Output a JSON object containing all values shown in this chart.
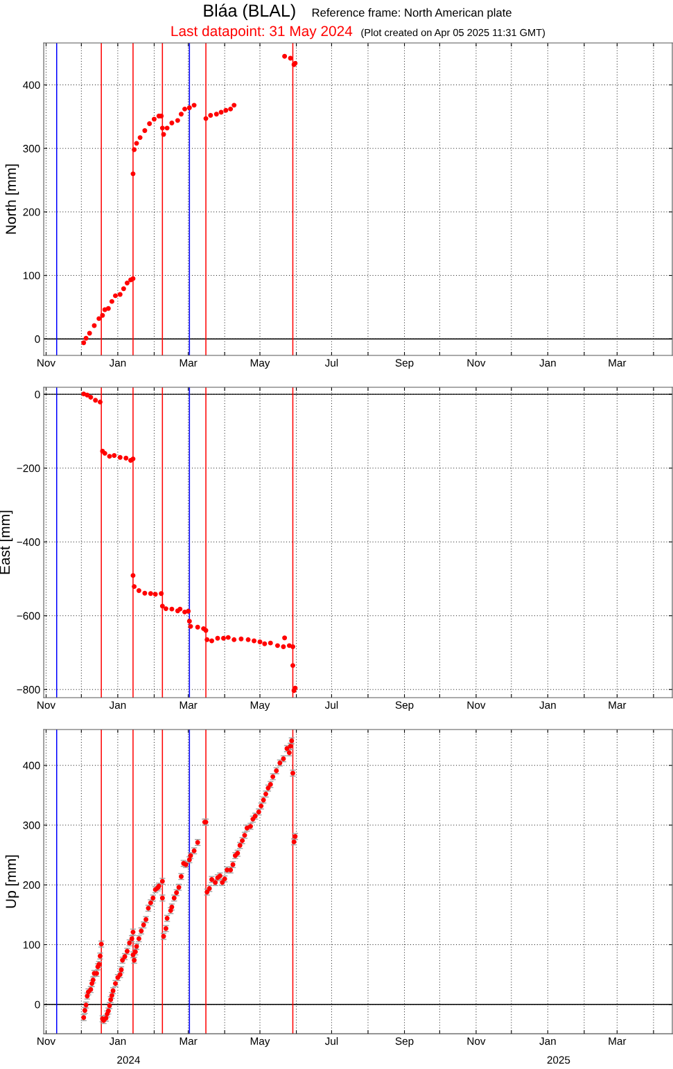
{
  "chart_data": [
    {
      "type": "scatter",
      "title": "Bláa (BLAL)",
      "subtitle": "Reference frame: North American plate",
      "ylabel": "North [mm]",
      "annotations": [
        "Last datapoint: 31 May 2024",
        "(Plot created on Apr 05 2025 11:31 GMT)"
      ],
      "series": [
        {
          "color": "#ff0000",
          "x": [
            "2023-12-03",
            "2023-12-05",
            "2023-12-08",
            "2023-12-12",
            "2023-12-16",
            "2023-12-19",
            "2023-12-21",
            "2023-12-24",
            "2023-12-27",
            "2023-12-30",
            "2024-01-03",
            "2024-01-06",
            "2024-01-09",
            "2024-01-12",
            "2024-01-14",
            "2024-01-14",
            "2024-01-15",
            "2024-01-17",
            "2024-01-20",
            "2024-01-24",
            "2024-01-28",
            "2024-02-01",
            "2024-02-05",
            "2024-02-07",
            "2024-02-08",
            "2024-02-09",
            "2024-02-12",
            "2024-02-16",
            "2024-02-21",
            "2024-02-24",
            "2024-02-27",
            "2024-03-02",
            "2024-03-06",
            "2024-03-16",
            "2024-03-20",
            "2024-03-25",
            "2024-03-29",
            "2024-04-02",
            "2024-04-06",
            "2024-04-09",
            "2024-05-22",
            "2024-05-27",
            "2024-05-30",
            "2024-05-31"
          ],
          "values": [
            -6,
            1,
            9,
            21,
            32,
            37,
            46,
            48,
            59,
            68,
            70,
            79,
            88,
            93,
            95,
            260,
            298,
            308,
            317,
            328,
            339,
            346,
            351,
            351,
            332,
            322,
            332,
            340,
            344,
            354,
            362,
            364,
            368,
            347,
            352,
            354,
            357,
            360,
            362,
            368,
            445,
            442,
            432,
            434
          ]
        }
      ],
      "xlim": [
        "2023-10-30",
        "2025-04-17"
      ],
      "ylim": [
        -26,
        466
      ],
      "xticks": [
        {
          "value": "2023-11-01",
          "label": "Nov"
        },
        {
          "value": "2023-12-01",
          "label": null
        },
        {
          "value": "2024-01-01",
          "label": "Jan"
        },
        {
          "value": "2024-02-01",
          "label": null
        },
        {
          "value": "2024-03-01",
          "label": "Mar"
        },
        {
          "value": "2024-04-01",
          "label": null
        },
        {
          "value": "2024-05-01",
          "label": "May"
        },
        {
          "value": "2024-06-01",
          "label": null
        },
        {
          "value": "2024-07-01",
          "label": "Jul"
        },
        {
          "value": "2024-08-01",
          "label": null
        },
        {
          "value": "2024-09-01",
          "label": "Sep"
        },
        {
          "value": "2024-10-01",
          "label": null
        },
        {
          "value": "2024-11-01",
          "label": "Nov"
        },
        {
          "value": "2024-12-01",
          "label": null
        },
        {
          "value": "2025-01-01",
          "label": "Jan"
        },
        {
          "value": "2025-02-01",
          "label": null
        },
        {
          "value": "2025-03-01",
          "label": "Mar"
        },
        {
          "value": "2025-04-01",
          "label": null
        }
      ],
      "yticks": [
        0,
        100,
        200,
        300,
        400
      ],
      "ref_lines": [
        {
          "axis": "y",
          "value": 0,
          "color": "#000000"
        },
        {
          "axis": "x",
          "value": "2023-11-10",
          "color": "#0000ff"
        },
        {
          "axis": "x",
          "value": "2023-12-18",
          "color": "#ff0000"
        },
        {
          "axis": "x",
          "value": "2024-01-14",
          "color": "#ff0000"
        },
        {
          "axis": "x",
          "value": "2024-02-08",
          "color": "#ff0000"
        },
        {
          "axis": "x",
          "value": "2024-03-02",
          "color": "#0000ff"
        },
        {
          "axis": "x",
          "value": "2024-03-16",
          "color": "#ff0000"
        },
        {
          "axis": "x",
          "value": "2024-05-29",
          "color": "#ff0000"
        }
      ],
      "grid": true,
      "marker": "circle"
    },
    {
      "type": "scatter",
      "ylabel": "East [mm]",
      "series": [
        {
          "color": "#ff0000",
          "x": [
            "2023-12-03",
            "2023-12-06",
            "2023-12-09",
            "2023-12-13",
            "2023-12-17",
            "2023-12-19",
            "2023-12-21",
            "2023-12-25",
            "2023-12-29",
            "2024-01-03",
            "2024-01-08",
            "2024-01-12",
            "2024-01-14",
            "2024-01-14",
            "2024-01-15",
            "2024-01-19",
            "2024-01-24",
            "2024-01-29",
            "2024-02-02",
            "2024-02-07",
            "2024-02-08",
            "2024-02-11",
            "2024-02-16",
            "2024-02-21",
            "2024-02-23",
            "2024-02-27",
            "2024-03-01",
            "2024-03-02",
            "2024-03-03",
            "2024-03-09",
            "2024-03-14",
            "2024-03-16",
            "2024-03-17",
            "2024-03-21",
            "2024-03-26",
            "2024-03-31",
            "2024-04-04",
            "2024-04-09",
            "2024-04-15",
            "2024-04-21",
            "2024-04-26",
            "2024-05-01",
            "2024-05-05",
            "2024-05-10",
            "2024-05-16",
            "2024-05-21",
            "2024-05-22",
            "2024-05-26",
            "2024-05-29",
            "2024-05-29",
            "2024-05-30",
            "2024-05-31"
          ],
          "values": [
            1,
            -2,
            -8,
            -16,
            -21,
            -154,
            -160,
            -168,
            -166,
            -171,
            -173,
            -179,
            -175,
            -491,
            -521,
            -532,
            -539,
            -540,
            -542,
            -540,
            -574,
            -581,
            -582,
            -587,
            -582,
            -590,
            -588,
            -615,
            -629,
            -631,
            -635,
            -640,
            -665,
            -668,
            -661,
            -661,
            -659,
            -665,
            -663,
            -665,
            -668,
            -671,
            -676,
            -674,
            -681,
            -684,
            -660,
            -681,
            -684,
            -735,
            -803,
            -796
          ]
        }
      ],
      "xlim": [
        "2023-10-30",
        "2025-04-17"
      ],
      "ylim": [
        -822,
        19
      ],
      "xticks": [
        {
          "value": "2023-11-01",
          "label": "Nov"
        },
        {
          "value": "2023-12-01",
          "label": null
        },
        {
          "value": "2024-01-01",
          "label": "Jan"
        },
        {
          "value": "2024-02-01",
          "label": null
        },
        {
          "value": "2024-03-01",
          "label": "Mar"
        },
        {
          "value": "2024-04-01",
          "label": null
        },
        {
          "value": "2024-05-01",
          "label": "May"
        },
        {
          "value": "2024-06-01",
          "label": null
        },
        {
          "value": "2024-07-01",
          "label": "Jul"
        },
        {
          "value": "2024-08-01",
          "label": null
        },
        {
          "value": "2024-09-01",
          "label": "Sep"
        },
        {
          "value": "2024-10-01",
          "label": null
        },
        {
          "value": "2024-11-01",
          "label": "Nov"
        },
        {
          "value": "2024-12-01",
          "label": null
        },
        {
          "value": "2025-01-01",
          "label": "Jan"
        },
        {
          "value": "2025-02-01",
          "label": null
        },
        {
          "value": "2025-03-01",
          "label": "Mar"
        },
        {
          "value": "2025-04-01",
          "label": null
        }
      ],
      "yticks": [
        {
          "value": -800,
          "label": "−800"
        },
        {
          "value": -600,
          "label": "−600"
        },
        {
          "value": -400,
          "label": "−400"
        },
        {
          "value": -200,
          "label": "−200"
        },
        0
      ],
      "ref_lines": [
        {
          "axis": "y",
          "value": 0,
          "color": "#000000"
        },
        {
          "axis": "x",
          "value": "2023-11-10",
          "color": "#0000ff"
        },
        {
          "axis": "x",
          "value": "2023-12-18",
          "color": "#ff0000"
        },
        {
          "axis": "x",
          "value": "2024-01-14",
          "color": "#ff0000"
        },
        {
          "axis": "x",
          "value": "2024-02-08",
          "color": "#ff0000"
        },
        {
          "axis": "x",
          "value": "2024-03-02",
          "color": "#0000ff"
        },
        {
          "axis": "x",
          "value": "2024-03-16",
          "color": "#ff0000"
        },
        {
          "axis": "x",
          "value": "2024-05-29",
          "color": "#ff0000"
        }
      ],
      "grid": true,
      "marker": "circle"
    },
    {
      "type": "scatter",
      "ylabel": "Up [mm]",
      "annotations": [
        "2024",
        "2025"
      ],
      "series": [
        {
          "color": "#ff0000",
          "x": [
            "2023-12-03",
            "2023-12-04",
            "2023-12-05",
            "2023-12-06",
            "2023-12-07",
            "2023-12-09",
            "2023-12-10",
            "2023-12-11",
            "2023-12-12",
            "2023-12-14",
            "2023-12-15",
            "2023-12-16",
            "2023-12-17",
            "2023-12-18",
            "2023-12-19",
            "2023-12-20",
            "2023-12-22",
            "2023-12-23",
            "2023-12-24",
            "2023-12-25",
            "2023-12-26",
            "2023-12-27",
            "2023-12-28",
            "2023-12-30",
            "2024-01-01",
            "2024-01-03",
            "2024-01-04",
            "2024-01-05",
            "2024-01-07",
            "2024-01-09",
            "2024-01-11",
            "2024-01-13",
            "2024-01-14",
            "2024-01-14",
            "2024-01-15",
            "2024-01-16",
            "2024-01-17",
            "2024-01-19",
            "2024-01-21",
            "2024-01-23",
            "2024-01-25",
            "2024-01-27",
            "2024-01-29",
            "2024-01-31",
            "2024-02-02",
            "2024-02-04",
            "2024-02-05",
            "2024-02-08",
            "2024-02-08",
            "2024-02-09",
            "2024-02-11",
            "2024-02-12",
            "2024-02-15",
            "2024-02-16",
            "2024-02-18",
            "2024-02-20",
            "2024-02-22",
            "2024-02-24",
            "2024-02-26",
            "2024-02-28",
            "2024-03-02",
            "2024-03-03",
            "2024-03-06",
            "2024-03-09",
            "2024-03-15",
            "2024-03-16",
            "2024-03-17",
            "2024-03-19",
            "2024-03-21",
            "2024-03-24",
            "2024-03-26",
            "2024-03-28",
            "2024-03-30",
            "2024-04-01",
            "2024-04-03",
            "2024-04-06",
            "2024-04-08",
            "2024-04-10",
            "2024-04-12",
            "2024-04-14",
            "2024-04-16",
            "2024-04-18",
            "2024-04-20",
            "2024-04-23",
            "2024-04-25",
            "2024-04-27",
            "2024-04-30",
            "2024-05-02",
            "2024-05-04",
            "2024-05-06",
            "2024-05-08",
            "2024-05-10",
            "2024-05-12",
            "2024-05-15",
            "2024-05-18",
            "2024-05-21",
            "2024-05-24",
            "2024-05-26",
            "2024-05-27",
            "2024-05-28",
            "2024-05-29",
            "2024-05-30",
            "2024-05-31"
          ],
          "values": [
            -22,
            -10,
            -1,
            14,
            21,
            25,
            35,
            41,
            52,
            52,
            63,
            67,
            81,
            101,
            -24,
            -27,
            -23,
            -16,
            -11,
            -2,
            8,
            15,
            23,
            35,
            45,
            50,
            58,
            74,
            80,
            89,
            103,
            110,
            121,
            83,
            74,
            88,
            97,
            110,
            123,
            133,
            142,
            161,
            170,
            178,
            192,
            195,
            198,
            206,
            178,
            114,
            127,
            144,
            157,
            163,
            178,
            187,
            196,
            214,
            236,
            234,
            242,
            249,
            257,
            271,
            305,
            305,
            188,
            194,
            209,
            204,
            212,
            215,
            204,
            210,
            225,
            225,
            234,
            249,
            253,
            266,
            274,
            283,
            295,
            298,
            310,
            315,
            322,
            332,
            342,
            352,
            362,
            368,
            381,
            391,
            404,
            411,
            428,
            421,
            432,
            441,
            387,
            272,
            281
          ],
          "errors": [
            5,
            5,
            5,
            5,
            5,
            5,
            5,
            5,
            5,
            5,
            5,
            5,
            5,
            5,
            5,
            5,
            5,
            5,
            5,
            5,
            5,
            5,
            5,
            5,
            5,
            5,
            5,
            5,
            5,
            5,
            5,
            5,
            5,
            5,
            5,
            5,
            5,
            5,
            5,
            5,
            5,
            5,
            5,
            5,
            5,
            5,
            5,
            5,
            5,
            5,
            5,
            5,
            5,
            5,
            5,
            5,
            5,
            5,
            5,
            5,
            5,
            5,
            5,
            5,
            5,
            5,
            5,
            5,
            5,
            5,
            5,
            5,
            5,
            5,
            5,
            5,
            5,
            5,
            5,
            5,
            5,
            5,
            5,
            5,
            5,
            5,
            5,
            5,
            5,
            5,
            5,
            5,
            5,
            5,
            5,
            5,
            5,
            5,
            5,
            5,
            5,
            5,
            5
          ]
        }
      ],
      "xlim": [
        "2023-10-30",
        "2025-04-17"
      ],
      "ylim": [
        -49,
        460
      ],
      "xticks": [
        {
          "value": "2023-11-01",
          "label": "Nov"
        },
        {
          "value": "2023-12-01",
          "label": null
        },
        {
          "value": "2024-01-01",
          "label": "Jan"
        },
        {
          "value": "2024-02-01",
          "label": null
        },
        {
          "value": "2024-03-01",
          "label": "Mar"
        },
        {
          "value": "2024-04-01",
          "label": null
        },
        {
          "value": "2024-05-01",
          "label": "May"
        },
        {
          "value": "2024-06-01",
          "label": null
        },
        {
          "value": "2024-07-01",
          "label": "Jul"
        },
        {
          "value": "2024-08-01",
          "label": null
        },
        {
          "value": "2024-09-01",
          "label": "Sep"
        },
        {
          "value": "2024-10-01",
          "label": null
        },
        {
          "value": "2024-11-01",
          "label": "Nov"
        },
        {
          "value": "2024-12-01",
          "label": null
        },
        {
          "value": "2025-01-01",
          "label": "Jan"
        },
        {
          "value": "2025-02-01",
          "label": null
        },
        {
          "value": "2025-03-01",
          "label": "Mar"
        },
        {
          "value": "2025-04-01",
          "label": null
        }
      ],
      "yticks": [
        0,
        100,
        200,
        300,
        400
      ],
      "ref_lines": [
        {
          "axis": "y",
          "value": 0,
          "color": "#000000"
        },
        {
          "axis": "x",
          "value": "2023-11-10",
          "color": "#0000ff"
        },
        {
          "axis": "x",
          "value": "2023-12-18",
          "color": "#ff0000"
        },
        {
          "axis": "x",
          "value": "2024-01-14",
          "color": "#ff0000"
        },
        {
          "axis": "x",
          "value": "2024-02-08",
          "color": "#ff0000"
        },
        {
          "axis": "x",
          "value": "2024-03-02",
          "color": "#0000ff"
        },
        {
          "axis": "x",
          "value": "2024-03-16",
          "color": "#ff0000"
        },
        {
          "axis": "x",
          "value": "2024-05-29",
          "color": "#ff0000"
        }
      ],
      "grid": true,
      "marker": "circle"
    }
  ]
}
